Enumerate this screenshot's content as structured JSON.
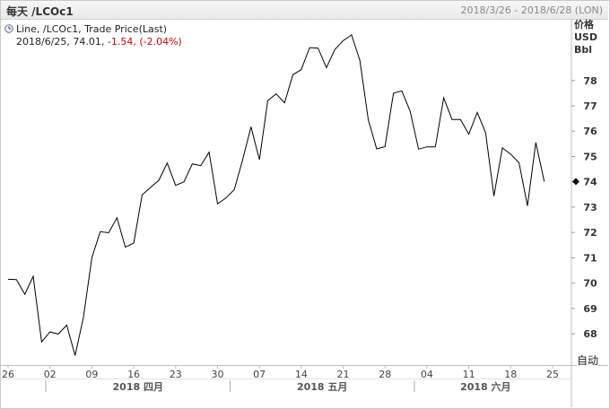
{
  "header": {
    "title": "每天 /LCOc1",
    "date_range": "2018/3/26 - 2018/6/28 (LON)"
  },
  "legend": {
    "line1": "Line, /LCOc1, Trade Price(Last)",
    "line2_prefix": "2018/6/25, 74.01, ",
    "line2_change": "-1.54, (-2.04%)"
  },
  "axis": {
    "unit_line1": "价格",
    "unit_line2": "USD",
    "unit_line3": "Bbl",
    "auto_label": "自动"
  },
  "chart_data": {
    "type": "line",
    "series": [
      {
        "name": "/LCOc1",
        "values": [
          70.15,
          70.14,
          69.56,
          70.27,
          67.68,
          68.07,
          67.99,
          68.34,
          67.14,
          68.65,
          71.0,
          72.03,
          71.99,
          72.58,
          71.42,
          71.58,
          73.48,
          73.78,
          74.06,
          74.74,
          73.86,
          74.0,
          74.71,
          74.64,
          75.17,
          73.13,
          73.36,
          73.69,
          74.87,
          76.17,
          74.87,
          77.21,
          77.47,
          77.12,
          78.23,
          78.43,
          79.3,
          79.28,
          78.51,
          79.22,
          79.57,
          79.8,
          78.79,
          76.44,
          75.3,
          75.39,
          77.5,
          77.59,
          76.79,
          75.29,
          75.38,
          75.38,
          77.32,
          76.46,
          76.46,
          75.88,
          76.74,
          75.94,
          73.44,
          75.34,
          75.09,
          74.75,
          73.05,
          75.55,
          74.01
        ]
      }
    ],
    "last_value": 74.01,
    "y_ticks": [
      68,
      69,
      70,
      71,
      72,
      73,
      74,
      75,
      76,
      77,
      78
    ],
    "ylim": [
      66.8,
      80.4
    ],
    "x_ticks": [
      "26",
      "02",
      "09",
      "16",
      "23",
      "30",
      "07",
      "14",
      "21",
      "28",
      "04",
      "11",
      "18",
      "25"
    ],
    "months": [
      "2018 四月",
      "2018 五月",
      "2018 六月"
    ],
    "grid": false
  }
}
